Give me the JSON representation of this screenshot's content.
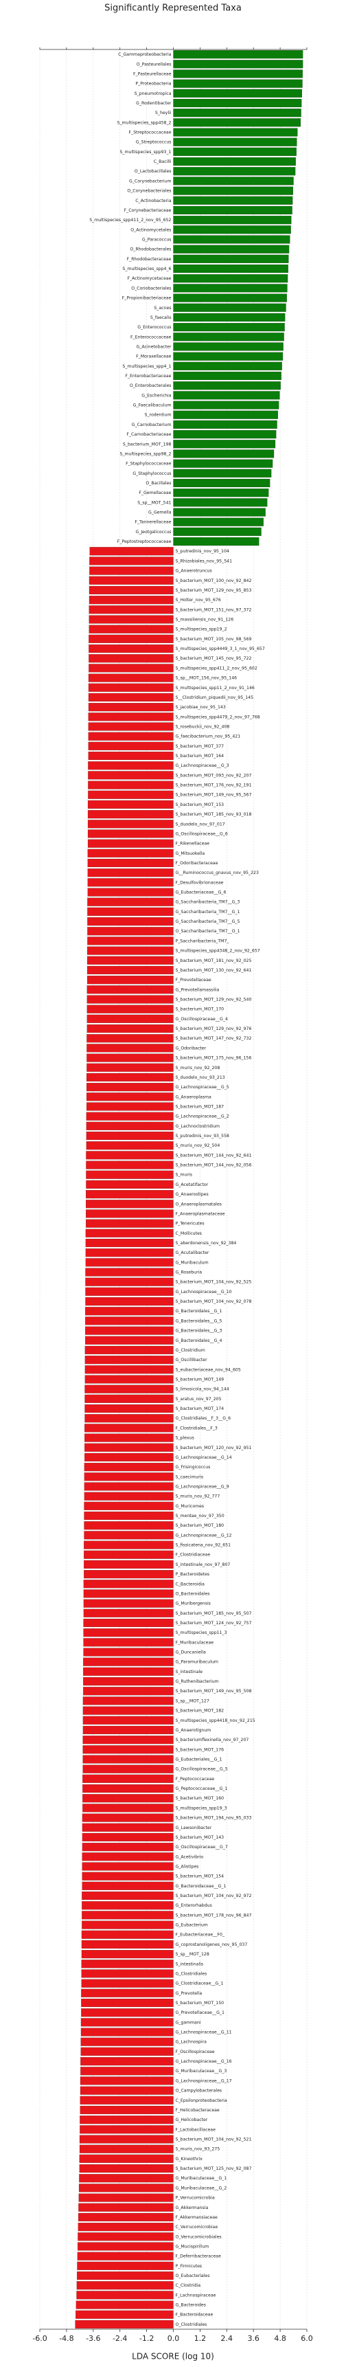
{
  "chart_data": {
    "type": "hbar",
    "title": "Significantly Represented Taxa",
    "xlabel": "LDA SCORE (log 10)",
    "categories": [
      "C_Gammaproteobacteria",
      "O_Pasteurellales",
      "F_Pasteurellaceae",
      "P_Proteobacteria",
      "S_pneumotropica",
      "G_Rodentibacter",
      "S_heylii",
      "S_multispecies_spp458_2",
      "F_Streptococcaceae",
      "G_Streptococcus",
      "S_multispecies_spp93_1",
      "C_Bacilli",
      "O_Lactobacillales",
      "G_Corynebacterium",
      "O_Corynebacteriales",
      "C_Actinobacteria",
      "F_Corynebacteriaceae",
      "S_multispecies_spp411_2_nov_95_652",
      "O_Actinomycetales",
      "G_Paracoccus",
      "O_Rhodobacterales",
      "F_Rhodobacteraceae",
      "S_multispecies_spp4_6",
      "F_Actinomycetaceae",
      "O_Coriobacteriales",
      "F_Propionibacteriaceae",
      "S_acnes",
      "S_faecalis",
      "G_Enterococcus",
      "F_Enterococcaceae",
      "G_Acinetobacter",
      "F_Moraxellaceae",
      "S_multispecies_spp4_1",
      "F_Enterobacteriaceae",
      "O_Enterobacterales",
      "G_Escherichia",
      "G_Faecalibaculum",
      "S_rodentium",
      "G_Carnobacterium",
      "F_Carnobacteriaceae",
      "S_bacterium_MOT_198",
      "S_multispecies_spp98_2",
      "F_Staphylococcaceae",
      "G_Staphylococcus",
      "O_Bacillales",
      "F_Gemellaceae",
      "S_sp__MOT_541",
      "G_Gemella",
      "F_Tannerellaceae",
      "G_Jeotgalicoccus",
      "F_Peptostreptococcaceae",
      "S_putredinis_nov_95_104",
      "S_Rhizobiales_nov_95_541",
      "G_Anaerotruncus",
      "S_bacterium_MOT_100_nov_92_842",
      "S_bacterium_MOT_129_nov_95_853",
      "S_Holter_nov_95_676",
      "S_bacterium_MOT_151_nov_97_372",
      "S_massiliensis_nov_91_126",
      "S_multispecies_spp19_2",
      "S_bacterium_MOT_105_nov_98_569",
      "S_multispecies_spp4449_3_1_nov_95_657",
      "S_bacterium_MOT_145_nov_95_722",
      "S_multispecies_spp411_2_nov_95_602",
      "S_sp__MOT_156_nov_95_146",
      "S_multispecies_spp11_2_nov_91_146",
      "S__Clostridium_piquedii_nov_95_145",
      "S_jacobiae_nov_95_143",
      "S_multispecies_spp4479_2_nov_97_768",
      "S_rosebuckii_nov_92_408",
      "G_faecibacterium_nov_95_421",
      "S_bacterium_MOT_377",
      "S_bacterium_MOT_164",
      "G_Lachnospiraceae__G_3",
      "S_bacterium_MOT_093_nov_92_207",
      "S_bacterium_MOT_176_nov_92_191",
      "S_bacterium_MOT_149_nov_95_567",
      "S_bacterium_MOT_153",
      "S_bacterium_MOT_185_nov_93_018",
      "S_duodelo_nov_97_017",
      "G_Oscillospiraceae__G_6",
      "F_Rikenellaceae",
      "G_Mitsuokella",
      "F_Odoribacteraceae",
      "G__Ruminococcus_gnavus_nov_95_223",
      "F_Desulfovibrionaceae",
      "G_Eubacteriaceae__G_6",
      "G_Saccharibacteria_TM7__G_3",
      "G_Saccharibacteria_TM7__G_1",
      "G_Saccharibacteria_TM7__G_5",
      "O_Saccharibacteria_TM7__O_1",
      "P_Saccharibacteria_TM7_",
      "S_multispecies_spp4348_2_nov_92_657",
      "S_bacterium_MOT_181_nov_92_025",
      "S_bacterium_MOT_130_nov_92_641",
      "F_Prevotellaceae",
      "G_Prevotellamassilia",
      "S_bacterium_MOT_129_nov_92_540",
      "S_bacterium_MOT_170",
      "G_Oscillospiraceae__G_4",
      "S_bacterium_MOT_129_nov_92_976",
      "S_bacterium_MOT_147_nov_92_732",
      "G_Odoribacter",
      "S_bacterium_MOT_175_nov_96_156",
      "S_muris_nov_92_208",
      "S_duodelo_nov_93_213",
      "G_Lachnospiraceae__G_5",
      "G_Anaeroplasma",
      "S_bacterium_MOT_187",
      "G_Lachnospiraceae__G_2",
      "G_Lachnoclostridium",
      "S_putredinis_nov_93_558",
      "S_muris_nov_92_504",
      "S_bacterium_MOT_144_nov_92_641",
      "S_bacterium_MOT_144_nov_92_056",
      "S_muris",
      "G_Acetatifactor",
      "G_Anaerostipes",
      "O_Anaeroplasmatales",
      "F_Anaeroplasmataceae",
      "P_Tenericutes",
      "C_Mollicutes",
      "S_aberdonensis_nov_92_384",
      "G_Acutalibacter",
      "G_Muribaculum",
      "G_Roseburia",
      "S_bacterium_MOT_104_nov_92_525",
      "G_Lachnospiraceae__G_10",
      "S_bacterium_MOT_104_nov_92_078",
      "G_Bacteroidales__G_1",
      "G_Bacteroidales__G_5",
      "G_Bacteroidales__G_3",
      "G_Bacteroidales__G_4",
      "G_Clostridium",
      "G_Oscillibacter",
      "S_eubacteriaceae_nov_94_605",
      "S_bacterium_MOT_149",
      "S_limosicola_nov_94_144",
      "S_aratus_nov_97_205",
      "S_bacterium_MOT_174",
      "G_Clostridiales__F_3__G_6",
      "F_Clostridiales__F_3",
      "S_plexus",
      "S_bacterium_MOT_120_nov_92_951",
      "G_Lachnospiraceae__G_14",
      "G_Frisingicoccus",
      "S_caecimuris",
      "G_Lachnospiraceae__G_9",
      "S_muris_nov_92_777",
      "G_Muricomes",
      "S_merdae_nov_97_350",
      "S_bacterium_MOT_180",
      "G_Lachnospiraceae__G_12",
      "S_fissicatena_nov_92_651",
      "F_Clostridiaceae",
      "S_intestinale_nov_97_807",
      "P_Bacteroidetes",
      "C_Bacteroidia",
      "O_Bacteroidales",
      "G_Muribergensis",
      "S_bacterium_MOT_185_nov_95_507",
      "S_bacterium_MOT_124_nov_92_757",
      "S_multispecies_spp11_3",
      "F_Muribaculaceae",
      "G_Duncaniella",
      "G_Paramuribaculum",
      "S_intestinale",
      "G_Ruthenibacterium",
      "S_bacterium_MOT_149_nov_95_508",
      "S_sp__MOT_127",
      "S_bacterium_MOT_182",
      "S_multispecies_spp4418_nov_92_215",
      "G_Anaerotignum",
      "S_bacteriumflexinella_nov_97_207",
      "S_bacterium_MOT_176",
      "G_Eubacteriales__G_1",
      "G_Oscillospiraceae__G_5",
      "F_Peptococcaceae",
      "G_Peptococcaceae__G_1",
      "S_bacterium_MOT_160",
      "S_multispecies_spp19_3",
      "S_bacterium_MOT_194_nov_95_033",
      "G_Lawsonibacter",
      "S_bacterium_MOT_143",
      "G_Oscillospiraceae__G_7",
      "G_Acetivibrio",
      "G_Alistipes",
      "S_bacterium_MOT_154",
      "G_Bacteroidaceae__G_1",
      "S_bacterium_MOT_104_nov_92_972",
      "G_Enterorhabdus",
      "S_bacterium_MOT_178_nov_96_847",
      "G_Eubacterium",
      "F_Eubacteriaceae__F0_",
      "G_coprostanoligenes_nov_95_037",
      "S_sp__MOT_128",
      "S_intestinalis",
      "G_Clostridiales",
      "G_Clostridiaceae__G_1",
      "G_Prevotella",
      "S_bacterium_MOT_150",
      "G_Prevotellaceae__G_1",
      "G_gammani",
      "G_Lachnospiraceae__G_11",
      "G_Lachnospira",
      "F_Oscillospiraceae",
      "G_Lachnospiraceae__G_16",
      "G_Muribaculaceae__G_3",
      "G_Lachnospiraceae__G_17",
      "O_Campylobacterales",
      "C_Epsilonproteobacteria",
      "F_Helicobacteraceae",
      "G_Helicobacter",
      "F_Lactobacillaceae",
      "S_bacterium_MOT_104_nov_92_521",
      "S_muris_nov_93_275",
      "G_Kineothrix",
      "S_bacterium_MOT_125_nov_92_087",
      "G_Muribaculaceae__G_1",
      "G_Muribaculaceae__G_2",
      "P_Verrucomicrobia",
      "G_Akkermansia",
      "F_Akkermansiaceae",
      "C_Verrucomicrobiae",
      "O_Verrucomicrobiales",
      "G_Mucispirillum",
      "F_Deferribacteraceae",
      "P_Firmicutes",
      "O_Eubacteriales",
      "C_Clostridia",
      "F_Lachnospiraceae",
      "G_Bacteroides",
      "F_Bacteroidaceae",
      "O_Clostridiales"
    ],
    "values": [
      5.82,
      5.82,
      5.81,
      5.8,
      5.78,
      5.76,
      5.74,
      5.72,
      5.58,
      5.55,
      5.53,
      5.5,
      5.48,
      5.4,
      5.38,
      5.36,
      5.34,
      5.3,
      5.28,
      5.24,
      5.2,
      5.18,
      5.16,
      5.14,
      5.12,
      5.1,
      5.06,
      5.02,
      5.0,
      4.97,
      4.94,
      4.92,
      4.88,
      4.85,
      4.82,
      4.78,
      4.74,
      4.7,
      4.66,
      4.62,
      4.58,
      4.52,
      4.46,
      4.4,
      4.34,
      4.28,
      4.22,
      4.14,
      4.05,
      3.95,
      3.85,
      -3.76,
      -3.77,
      -3.77,
      -3.78,
      -3.78,
      -3.78,
      -3.79,
      -3.79,
      -3.79,
      -3.8,
      -3.8,
      -3.8,
      -3.8,
      -3.81,
      -3.81,
      -3.81,
      -3.81,
      -3.82,
      -3.82,
      -3.82,
      -3.82,
      -3.82,
      -3.83,
      -3.83,
      -3.83,
      -3.83,
      -3.84,
      -3.84,
      -3.84,
      -3.84,
      -3.84,
      -3.85,
      -3.85,
      -3.85,
      -3.85,
      -3.85,
      -3.86,
      -3.86,
      -3.86,
      -3.86,
      -3.86,
      -3.87,
      -3.87,
      -3.87,
      -3.87,
      -3.88,
      -3.88,
      -3.88,
      -3.88,
      -3.88,
      -3.89,
      -3.89,
      -3.89,
      -3.89,
      -3.9,
      -3.9,
      -3.9,
      -3.9,
      -3.91,
      -3.91,
      -3.91,
      -3.91,
      -3.92,
      -3.92,
      -3.92,
      -3.92,
      -3.93,
      -3.93,
      -3.93,
      -3.93,
      -3.94,
      -3.94,
      -3.94,
      -3.94,
      -3.95,
      -3.95,
      -3.95,
      -3.95,
      -3.96,
      -3.96,
      -3.96,
      -3.96,
      -3.97,
      -3.97,
      -3.97,
      -3.97,
      -3.98,
      -3.98,
      -3.98,
      -3.98,
      -3.99,
      -3.99,
      -3.99,
      -3.99,
      -4.0,
      -4.0,
      -4.0,
      -4.0,
      -4.01,
      -4.01,
      -4.01,
      -4.01,
      -4.02,
      -4.02,
      -4.02,
      -4.02,
      -4.03,
      -4.03,
      -4.03,
      -4.03,
      -4.04,
      -4.04,
      -4.04,
      -4.04,
      -4.05,
      -4.05,
      -4.05,
      -4.05,
      -4.06,
      -4.06,
      -4.06,
      -4.06,
      -4.07,
      -4.07,
      -4.07,
      -4.07,
      -4.08,
      -4.08,
      -4.08,
      -4.08,
      -4.09,
      -4.09,
      -4.09,
      -4.09,
      -4.1,
      -4.1,
      -4.1,
      -4.1,
      -4.11,
      -4.11,
      -4.11,
      -4.11,
      -4.12,
      -4.12,
      -4.12,
      -4.13,
      -4.13,
      -4.13,
      -4.14,
      -4.14,
      -4.14,
      -4.15,
      -4.15,
      -4.16,
      -4.16,
      -4.17,
      -4.17,
      -4.18,
      -4.18,
      -4.19,
      -4.19,
      -4.2,
      -4.2,
      -4.21,
      -4.21,
      -4.22,
      -4.22,
      -4.23,
      -4.24,
      -4.25,
      -4.26,
      -4.27,
      -4.28,
      -4.29,
      -4.3,
      -4.31,
      -4.32,
      -4.33,
      -4.34,
      -4.35,
      -4.37,
      -4.39,
      -4.41
    ],
    "positive_color": "#0a7d0a",
    "negative_color": "#e8161b",
    "xlim": [
      -6,
      6
    ],
    "xticks": [
      {
        "value": -6,
        "label": "-6.0"
      },
      {
        "value": -4.8,
        "label": "-4.8"
      },
      {
        "value": -3.6,
        "label": "-3.6"
      },
      {
        "value": -2.4,
        "label": "-2.4"
      },
      {
        "value": -1.2,
        "label": "-1.2"
      },
      {
        "value": 0,
        "label": "0.0"
      },
      {
        "value": 1.2,
        "label": "1.2"
      },
      {
        "value": 2.4,
        "label": "2.4"
      },
      {
        "value": 3.6,
        "label": "3.6"
      },
      {
        "value": 4.8,
        "label": "4.8"
      },
      {
        "value": 6,
        "label": "6.0"
      }
    ],
    "grid": true
  }
}
